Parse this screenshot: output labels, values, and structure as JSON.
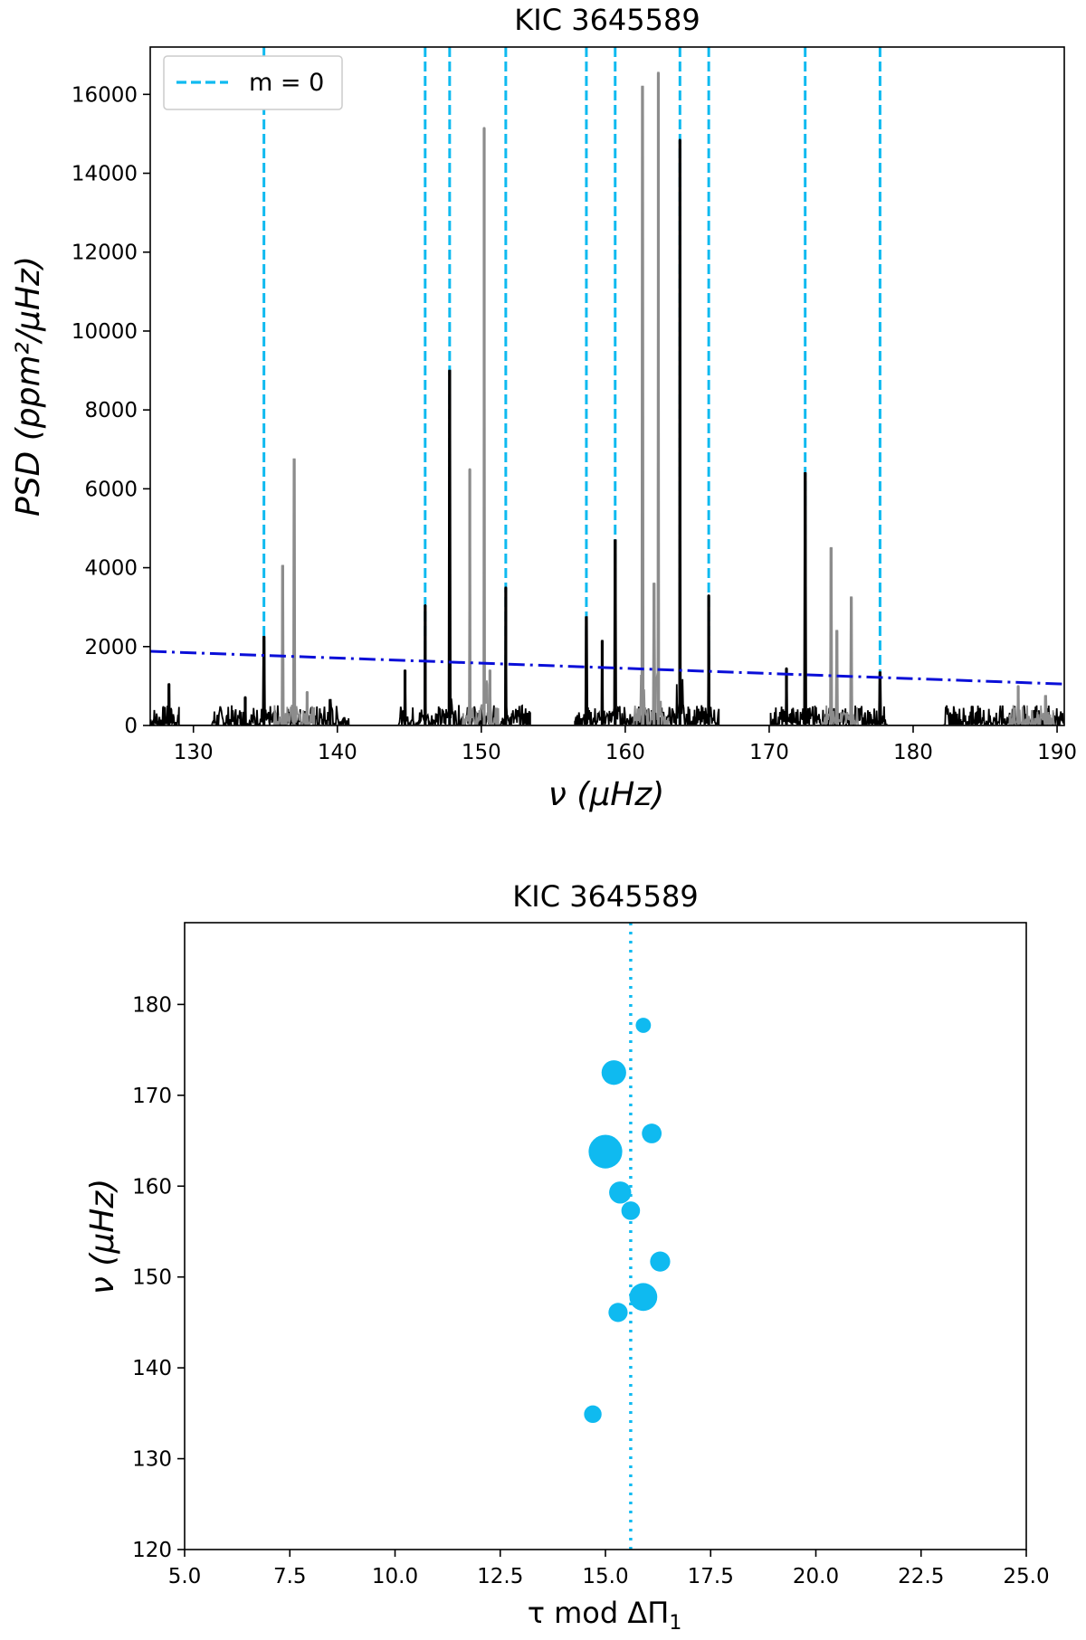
{
  "chart_data": [
    {
      "type": "line",
      "title": "KIC 3645589",
      "xlabel": "ν (μHz)",
      "ylabel": "PSD (ppm²/μHz)",
      "xlim": [
        127,
        190.5
      ],
      "ylim": [
        0,
        17200
      ],
      "xticks": [
        130,
        140,
        150,
        160,
        170,
        180,
        190
      ],
      "yticks": [
        0,
        2000,
        4000,
        6000,
        8000,
        10000,
        12000,
        14000,
        16000
      ],
      "legend": {
        "label": "m = 0",
        "placement": "upper-left",
        "color": "#0fbaf0"
      },
      "m0_lines": [
        134.9,
        146.1,
        147.8,
        151.7,
        157.3,
        159.3,
        163.8,
        165.8,
        172.5,
        177.7
      ],
      "threshold_line": {
        "x": [
          127,
          190.5
        ],
        "y": [
          1880,
          1050
        ],
        "color": "#0a0fd8"
      },
      "segments": [
        [
          127,
          129.0
        ],
        [
          131.3,
          140.8
        ],
        [
          144.2,
          153.4
        ],
        [
          156.5,
          166.5
        ],
        [
          170.1,
          178.2
        ],
        [
          182.1,
          190.5
        ]
      ],
      "peaks_black": [
        {
          "x": 128.3,
          "y": 1050
        },
        {
          "x": 133.6,
          "y": 720
        },
        {
          "x": 134.9,
          "y": 2250
        },
        {
          "x": 139.5,
          "y": 650
        },
        {
          "x": 144.7,
          "y": 1400
        },
        {
          "x": 146.1,
          "y": 3050
        },
        {
          "x": 147.8,
          "y": 9000
        },
        {
          "x": 151.7,
          "y": 3500
        },
        {
          "x": 157.3,
          "y": 2750
        },
        {
          "x": 158.4,
          "y": 2150
        },
        {
          "x": 159.3,
          "y": 4700
        },
        {
          "x": 163.8,
          "y": 14850
        },
        {
          "x": 165.8,
          "y": 3300
        },
        {
          "x": 171.2,
          "y": 1450
        },
        {
          "x": 172.5,
          "y": 6400
        },
        {
          "x": 177.7,
          "y": 1350
        },
        {
          "x": 184.1,
          "y": 480
        }
      ],
      "peaks_gray": [
        {
          "x": 136.2,
          "y": 4050
        },
        {
          "x": 137.0,
          "y": 6750
        },
        {
          "x": 137.9,
          "y": 850
        },
        {
          "x": 149.2,
          "y": 6500
        },
        {
          "x": 150.2,
          "y": 15150
        },
        {
          "x": 150.6,
          "y": 1400
        },
        {
          "x": 161.2,
          "y": 16200
        },
        {
          "x": 162.0,
          "y": 3600
        },
        {
          "x": 162.3,
          "y": 16550
        },
        {
          "x": 174.3,
          "y": 4500
        },
        {
          "x": 174.7,
          "y": 2400
        },
        {
          "x": 175.7,
          "y": 3250
        },
        {
          "x": 187.3,
          "y": 1000
        },
        {
          "x": 189.2,
          "y": 750
        }
      ]
    },
    {
      "type": "scatter",
      "title": "KIC 3645589",
      "xlabel": "τ mod ΔΠ",
      "xlabel_sub": "1",
      "ylabel": "ν (μHz)",
      "xlim": [
        5.0,
        25.0
      ],
      "ylim": [
        120,
        189
      ],
      "xticks": [
        "5.0",
        "7.5",
        "10.0",
        "12.5",
        "15.0",
        "17.5",
        "20.0",
        "22.5",
        "25.0"
      ],
      "yticks": [
        120,
        130,
        140,
        150,
        160,
        170,
        180
      ],
      "vline": {
        "x": 15.6,
        "color": "#0fbaf0"
      },
      "point_color": "#0fbaf0",
      "points": [
        {
          "x": 14.7,
          "y": 134.9,
          "psd": 2250
        },
        {
          "x": 15.3,
          "y": 146.1,
          "psd": 3050
        },
        {
          "x": 15.9,
          "y": 147.8,
          "psd": 9000
        },
        {
          "x": 16.3,
          "y": 151.7,
          "psd": 3500
        },
        {
          "x": 15.6,
          "y": 157.3,
          "psd": 2750
        },
        {
          "x": 15.35,
          "y": 159.3,
          "psd": 4700
        },
        {
          "x": 15.0,
          "y": 163.8,
          "psd": 14850
        },
        {
          "x": 16.1,
          "y": 165.8,
          "psd": 3300
        },
        {
          "x": 15.2,
          "y": 172.5,
          "psd": 6400
        },
        {
          "x": 15.9,
          "y": 177.7,
          "psd": 1350
        }
      ]
    }
  ]
}
